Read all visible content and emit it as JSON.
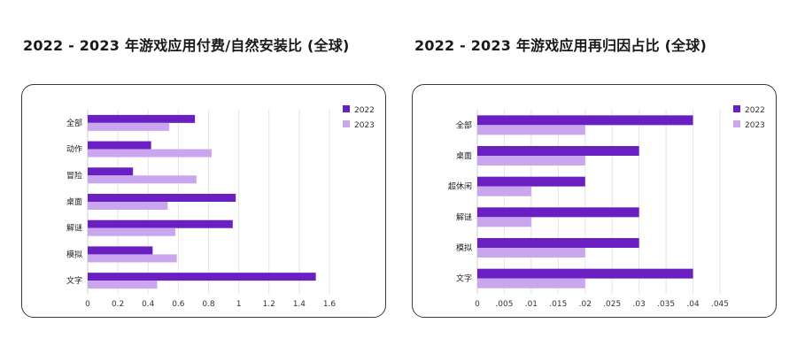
{
  "colors": {
    "2022": "#6a1fc2",
    "2023": "#c9a6ee"
  },
  "chart_data": [
    {
      "type": "bar",
      "orientation": "horizontal",
      "title": "2022 - 2023 年游戏应用付费/自然安装比 (全球)",
      "categories": [
        "全部",
        "动作",
        "冒险",
        "桌面",
        "解谜",
        "模拟",
        "文字"
      ],
      "series": [
        {
          "name": "2022",
          "values": [
            0.71,
            0.42,
            0.3,
            0.98,
            0.96,
            0.43,
            1.51
          ]
        },
        {
          "name": "2023",
          "values": [
            0.54,
            0.82,
            0.72,
            0.53,
            0.58,
            0.59,
            0.46
          ]
        }
      ],
      "xlim": [
        0,
        1.6
      ],
      "xticks": [
        0,
        0.2,
        0.4,
        0.6,
        0.8,
        1,
        1.2,
        1.4,
        1.6
      ],
      "xtick_labels": [
        "0",
        "0.2",
        "0.4",
        "0.6",
        "0.8",
        "1",
        "1.2",
        "1.4",
        "1.6"
      ],
      "grid": true,
      "legend_position": "top-right",
      "xlabel": "",
      "ylabel": ""
    },
    {
      "type": "bar",
      "orientation": "horizontal",
      "title": "2022 - 2023 年游戏应用再归因占比 (全球)",
      "categories": [
        "全部",
        "桌面",
        "超休闲",
        "解谜",
        "模拟",
        "文字"
      ],
      "series": [
        {
          "name": "2022",
          "values": [
            0.04,
            0.03,
            0.02,
            0.03,
            0.03,
            0.04
          ]
        },
        {
          "name": "2023",
          "values": [
            0.02,
            0.02,
            0.01,
            0.01,
            0.02,
            0.02
          ]
        }
      ],
      "xlim": [
        0,
        0.045
      ],
      "xticks": [
        0,
        0.005,
        0.01,
        0.015,
        0.02,
        0.025,
        0.03,
        0.035,
        0.04,
        0.045
      ],
      "xtick_labels": [
        "0",
        ".005",
        ".01",
        ".015",
        ".02",
        ".025",
        ".03",
        ".035",
        ".04",
        ".045"
      ],
      "grid": true,
      "legend_position": "top-right",
      "xlabel": "",
      "ylabel": ""
    }
  ]
}
